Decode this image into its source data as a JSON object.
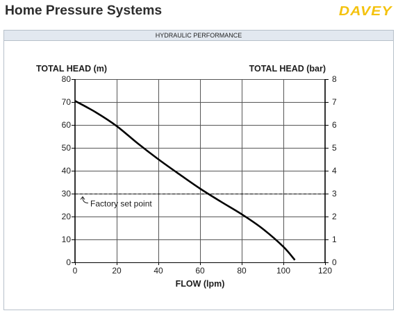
{
  "header": {
    "title": "Home Pressure Systems",
    "brand": "DAVEY",
    "brand_color": "#f4c20d"
  },
  "chart_data": {
    "type": "line",
    "title": "HYDRAULIC PERFORMANCE",
    "xlabel": "FLOW (lpm)",
    "ylabel": "TOTAL HEAD (m)",
    "y2label": "TOTAL HEAD (bar)",
    "xlim": [
      0,
      120
    ],
    "ylim": [
      0,
      80
    ],
    "y2lim": [
      0,
      8
    ],
    "x_ticks": [
      0,
      20,
      40,
      60,
      80,
      100,
      120
    ],
    "y_ticks": [
      0,
      10,
      20,
      30,
      40,
      50,
      60,
      70,
      80
    ],
    "y2_ticks": [
      0,
      1,
      2,
      3,
      4,
      5,
      6,
      7,
      8
    ],
    "grid": true,
    "series": [
      {
        "x": [
          0,
          10,
          20,
          30,
          40,
          50,
          60,
          70,
          80,
          90,
          100,
          105.5
        ],
        "y": [
          70.5,
          65.5,
          59.5,
          52,
          45,
          38.5,
          32.2,
          26.5,
          21,
          14.7,
          6.8,
          1
        ],
        "color": "#000000"
      }
    ],
    "reference_line": {
      "y": 30,
      "style": "dashed",
      "label": "Factory set point"
    }
  }
}
